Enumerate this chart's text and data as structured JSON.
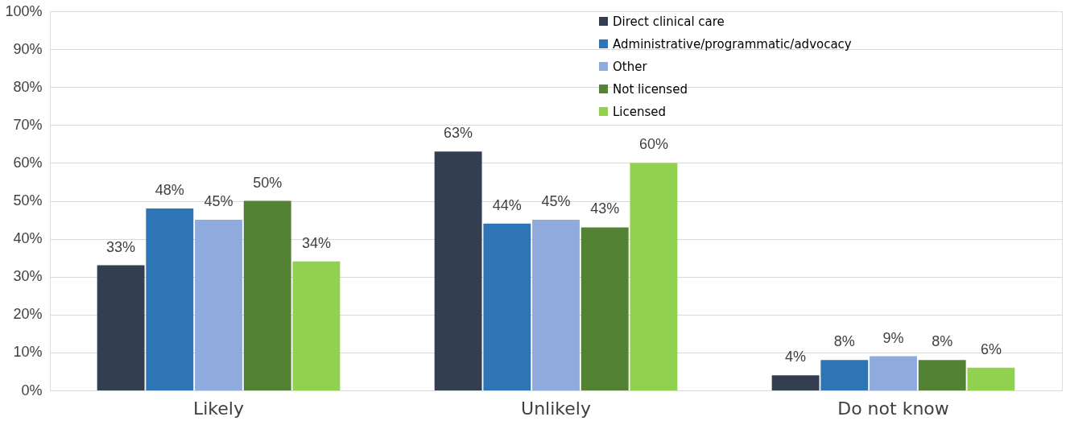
{
  "chart_data": {
    "type": "bar",
    "categories": [
      "Likely",
      "Unlikely",
      "Do not know"
    ],
    "series": [
      {
        "name": "Direct clinical care",
        "color": "#333f50",
        "values": [
          33,
          63,
          4
        ],
        "value_labels": [
          "33%",
          "63%",
          "4%"
        ]
      },
      {
        "name": "Administrative/programmatic/advocacy",
        "color": "#2e75b6",
        "values": [
          48,
          44,
          8
        ],
        "value_labels": [
          "48%",
          "44%",
          "8%"
        ]
      },
      {
        "name": "Other",
        "color": "#8faadc",
        "values": [
          45,
          45,
          9
        ],
        "value_labels": [
          "45%",
          "45%",
          "9%"
        ]
      },
      {
        "name": "Not licensed",
        "color": "#548235",
        "values": [
          50,
          43,
          8
        ],
        "value_labels": [
          "50%",
          "43%",
          "8%"
        ]
      },
      {
        "name": "Licensed",
        "color": "#92d050",
        "values": [
          34,
          60,
          6
        ],
        "value_labels": [
          "34%",
          "60%",
          "6%"
        ]
      }
    ],
    "ylim": [
      0,
      100
    ],
    "yticks": [
      {
        "value": 0,
        "label": "0%"
      },
      {
        "value": 10,
        "label": "10%"
      },
      {
        "value": 20,
        "label": "20%"
      },
      {
        "value": 30,
        "label": "30%"
      },
      {
        "value": 40,
        "label": "40%"
      },
      {
        "value": 50,
        "label": "50%"
      },
      {
        "value": 60,
        "label": "60%"
      },
      {
        "value": 70,
        "label": "70%"
      },
      {
        "value": 80,
        "label": "80%"
      },
      {
        "value": 90,
        "label": "90%"
      },
      {
        "value": 100,
        "label": "100%"
      }
    ],
    "grid": "y",
    "legend": "top right"
  }
}
